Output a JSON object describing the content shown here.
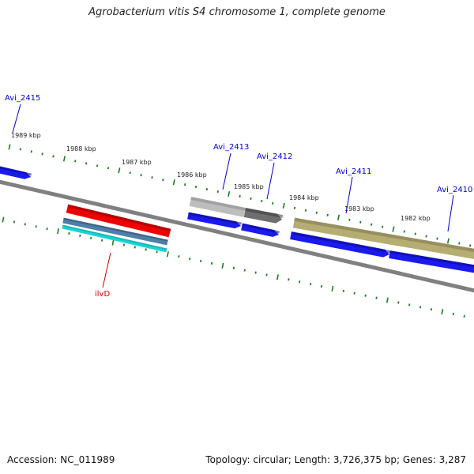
{
  "title": "Agrobacterium vitis S4 chromosome 1, complete genome",
  "colors": {
    "tick": "#1f7a1f",
    "backbone": "#808080",
    "forward_cds": "#1a1aee",
    "gene_red": "#ee0000",
    "gene_gray_light": "#bdbdbd",
    "gene_gray_dark": "#6e6e6e",
    "gene_olive": "#b5ad72",
    "gene_steelblue": "#4f7fa8",
    "gene_cyan": "#18d3d3",
    "label_blue": "#0000cc",
    "label_red": "#cc0000"
  },
  "kbp_labels": [
    "1989 kbp",
    "1988 kbp",
    "1987 kbp",
    "1986 kbp",
    "1985 kbp",
    "1984 kbp",
    "1983 kbp",
    "1982 kbp"
  ],
  "gene_labels": [
    "Avi_2415",
    "Avi_2413",
    "Avi_2412",
    "Avi_2411",
    "Avi_2410",
    "ilvD"
  ],
  "footer": {
    "accession": "Accession: NC_011989",
    "summary": "Topology: circular; Length: 3,726,375 bp; Genes: 3,287"
  }
}
